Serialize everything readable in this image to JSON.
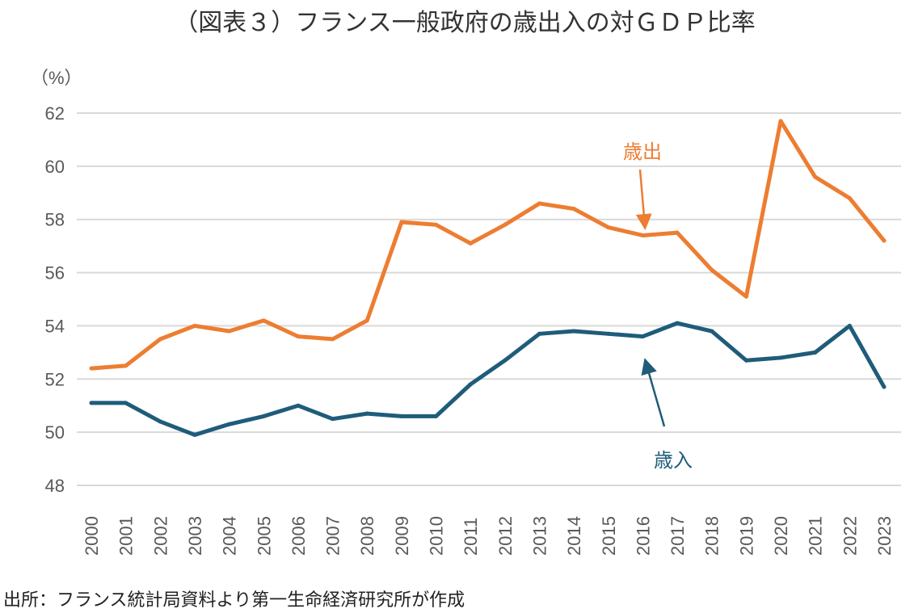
{
  "chart_data": {
    "type": "line",
    "title": "（図表３）フランス一般政府の歳出入の対ＧＤＰ比率",
    "ylabel": "（%）",
    "xlabel": "",
    "ylim": [
      48,
      62
    ],
    "yticks": [
      48,
      50,
      52,
      54,
      56,
      58,
      60,
      62
    ],
    "grid": true,
    "categories": [
      "2000",
      "2001",
      "2002",
      "2003",
      "2004",
      "2005",
      "2006",
      "2007",
      "2008",
      "2009",
      "2010",
      "2011",
      "2012",
      "2013",
      "2014",
      "2015",
      "2016",
      "2017",
      "2018",
      "2019",
      "2020",
      "2021",
      "2022",
      "2023"
    ],
    "series": [
      {
        "name": "歳出",
        "color": "#ED7D31",
        "values": [
          52.4,
          52.5,
          53.5,
          54.0,
          53.8,
          54.2,
          53.6,
          53.5,
          54.2,
          57.9,
          57.8,
          57.1,
          57.8,
          58.6,
          58.4,
          57.7,
          57.4,
          57.5,
          56.1,
          55.1,
          61.7,
          59.6,
          58.8,
          57.2
        ]
      },
      {
        "name": "歳入",
        "color": "#1F5C7A",
        "values": [
          51.1,
          51.1,
          50.4,
          49.9,
          50.3,
          50.6,
          51.0,
          50.5,
          50.7,
          50.6,
          50.6,
          51.8,
          52.7,
          53.7,
          53.8,
          53.7,
          53.6,
          54.1,
          53.8,
          52.7,
          52.8,
          53.0,
          54.0,
          51.7
        ]
      }
    ],
    "source": "出所：フランス統計局資料より第一生命経済研究所が作成"
  }
}
